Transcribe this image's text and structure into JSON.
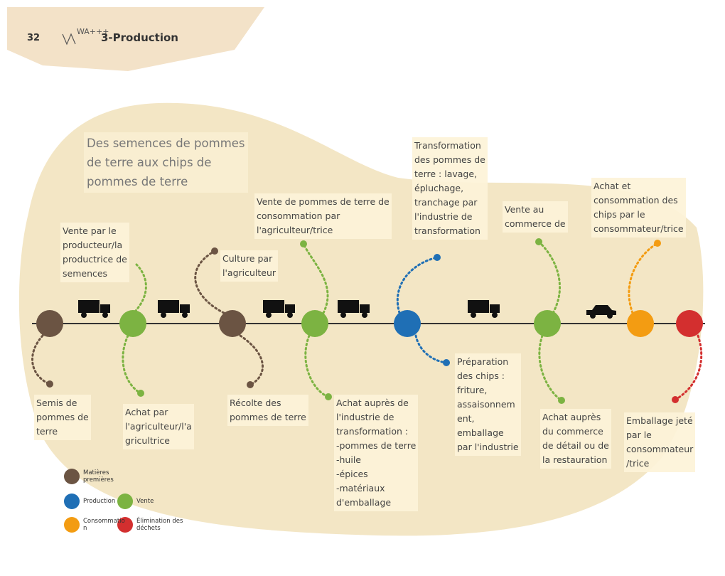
{
  "header": {
    "page_number": "32",
    "logo": "WA+++",
    "title": "3-Production"
  },
  "diagram": {
    "title": [
      "Des semences de pommes",
      "de terre aux chips de",
      "pommes de terre"
    ],
    "steps": [
      {
        "lines": [
          "Vente par le",
          "producteur/la",
          "productrice de",
          "semences"
        ]
      },
      {
        "lines": [
          "Culture par",
          "l'agriculteur"
        ]
      },
      {
        "lines": [
          "Vente de pommes de terre de",
          "consommation par",
          "l'agriculteur/trice"
        ]
      },
      {
        "lines": [
          "Transformation",
          "des pommes de",
          "terre : lavage,",
          "épluchage,",
          "tranchage par",
          "l'industrie de",
          "transformation"
        ]
      },
      {
        "lines": [
          "Vente au",
          "commerce de"
        ]
      },
      {
        "lines": [
          "Achat et",
          "consommation des",
          "chips par le",
          "consommateur/trice"
        ]
      },
      {
        "lines": [
          "Semis de",
          "pommes de",
          "terre"
        ]
      },
      {
        "lines": [
          "Achat par",
          "l'agriculteur/l'a",
          "gricultrice"
        ]
      },
      {
        "lines": [
          "Récolte des",
          "pommes de terre"
        ]
      },
      {
        "lines": [
          "Achat auprès de",
          "l'industrie de",
          "transformation :",
          "-pommes de terre",
          "-huile",
          "-épices",
          "-matériaux",
          "d'emballage"
        ]
      },
      {
        "lines": [
          "Préparation",
          "des chips :",
          "friture,",
          "assaisonnem",
          "ent,",
          "emballage",
          "par l'industrie"
        ]
      },
      {
        "lines": [
          "Achat auprès",
          "du commerce",
          "de détail ou de",
          "la restauration"
        ]
      },
      {
        "lines": [
          "Emballage jeté",
          "par le",
          "consommateur",
          "/trice"
        ]
      }
    ],
    "legend": [
      {
        "lines": [
          "Matières",
          "premières"
        ]
      },
      {
        "lines": [
          "Production"
        ]
      },
      {
        "lines": [
          "Vente"
        ]
      },
      {
        "lines": [
          "Consommatio",
          "n"
        ]
      },
      {
        "lines": [
          "Élimination des",
          "déchets"
        ]
      }
    ]
  }
}
